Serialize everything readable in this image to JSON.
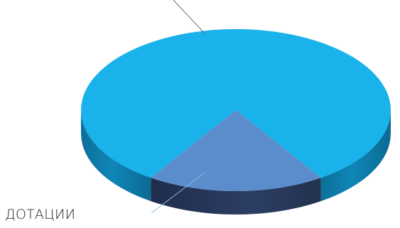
{
  "chart_data": {
    "type": "pie",
    "style": "3d",
    "slices": [
      {
        "label": "",
        "value": 81.5,
        "color": "#1ab2ea"
      },
      {
        "label": "ДОТАЦИИ",
        "value": 18.5,
        "color": "#5b8ccb"
      }
    ],
    "leader_lines": true,
    "legend": "none"
  }
}
